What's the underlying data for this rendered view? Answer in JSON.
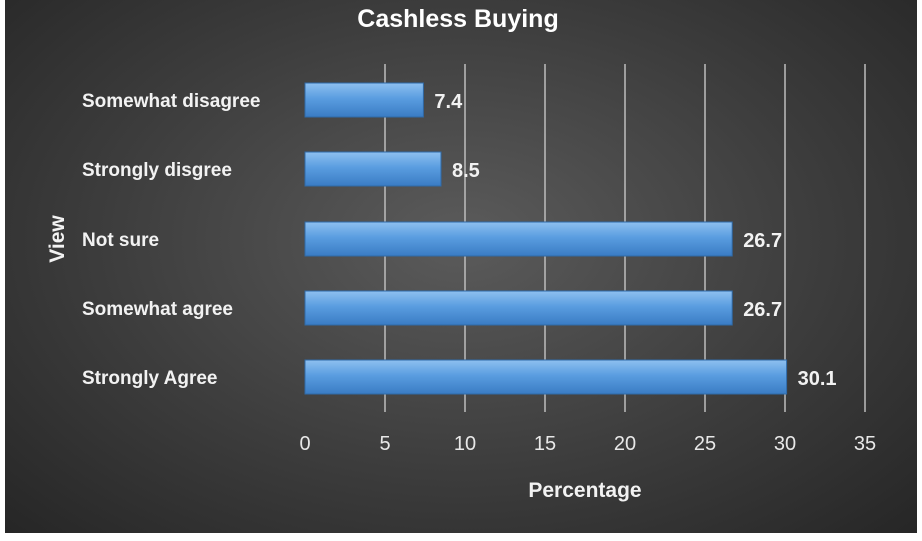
{
  "chart_data": {
    "type": "bar",
    "orientation": "horizontal",
    "title": "Cashless Buying",
    "xlabel": "Percentage",
    "ylabel": "View",
    "categories": [
      "Somewhat disagree",
      "Strongly disgree",
      "Not sure",
      "Somewhat agree",
      "Strongly Agree"
    ],
    "values": [
      7.4,
      8.5,
      26.7,
      26.7,
      30.1
    ],
    "value_labels": [
      "7.4",
      "8.5",
      "26.7",
      "26.7",
      "30.1"
    ],
    "xlim": [
      0,
      35
    ],
    "xticks": [
      "0",
      "5",
      "10",
      "15",
      "20",
      "25",
      "30",
      "35"
    ],
    "grid": "vertical",
    "legend": "none",
    "bar_color": "#4a8fd6",
    "background_color": "#3d3d3d"
  }
}
